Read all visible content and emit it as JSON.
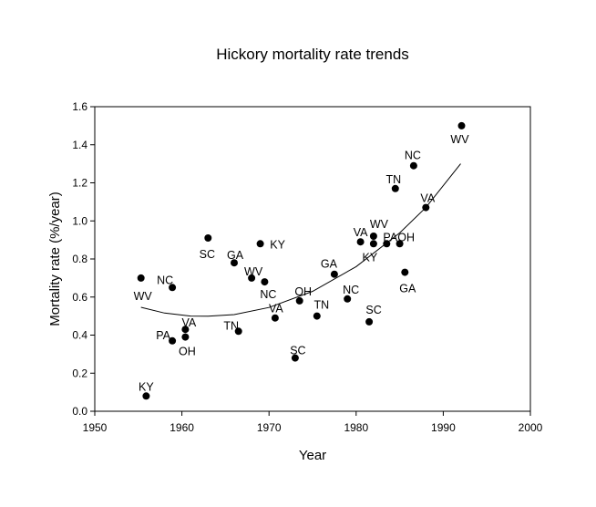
{
  "chart_data": {
    "type": "scatter",
    "title": "Hickory mortality rate trends",
    "xlabel": "Year",
    "ylabel": "Mortality rate (%/year)",
    "xlim": [
      1950,
      2000
    ],
    "ylim": [
      0.0,
      1.6
    ],
    "x_ticks": [
      "1950",
      "1960",
      "1970",
      "1980",
      "1990",
      "2000"
    ],
    "y_ticks": [
      "0.0",
      "0.2",
      "0.4",
      "0.6",
      "0.8",
      "1.0",
      "1.2",
      "1.4",
      "1.6"
    ],
    "grid": false,
    "legend": "none",
    "marker_color": "#000000",
    "points": [
      {
        "x": 1955.3,
        "y": 0.7,
        "label": "WV"
      },
      {
        "x": 1955.9,
        "y": 0.08,
        "label": "KY"
      },
      {
        "x": 1958.9,
        "y": 0.65,
        "label": "NC"
      },
      {
        "x": 1958.9,
        "y": 0.37,
        "label": "PA"
      },
      {
        "x": 1960.4,
        "y": 0.43,
        "label": "VA"
      },
      {
        "x": 1960.4,
        "y": 0.39,
        "label": "OH"
      },
      {
        "x": 1963.0,
        "y": 0.91,
        "label": "SC"
      },
      {
        "x": 1966.0,
        "y": 0.78,
        "label": "GA"
      },
      {
        "x": 1966.5,
        "y": 0.42,
        "label": "TN"
      },
      {
        "x": 1968.0,
        "y": 0.7,
        "label": "WV"
      },
      {
        "x": 1969.0,
        "y": 0.88,
        "label": "KY"
      },
      {
        "x": 1969.5,
        "y": 0.68,
        "label": "NC"
      },
      {
        "x": 1970.7,
        "y": 0.49,
        "label": "VA"
      },
      {
        "x": 1973.0,
        "y": 0.28,
        "label": "SC"
      },
      {
        "x": 1973.5,
        "y": 0.58,
        "label": "OH"
      },
      {
        "x": 1975.5,
        "y": 0.5,
        "label": "TN"
      },
      {
        "x": 1977.5,
        "y": 0.72,
        "label": "GA"
      },
      {
        "x": 1979.0,
        "y": 0.59,
        "label": "NC"
      },
      {
        "x": 1980.5,
        "y": 0.89,
        "label": "VA"
      },
      {
        "x": 1981.5,
        "y": 0.47,
        "label": "SC"
      },
      {
        "x": 1982.0,
        "y": 0.92,
        "label": "WV"
      },
      {
        "x": 1982.0,
        "y": 0.88,
        "label": "KY"
      },
      {
        "x": 1983.5,
        "y": 0.88,
        "label": "PA"
      },
      {
        "x": 1984.5,
        "y": 1.17,
        "label": "TN"
      },
      {
        "x": 1985.0,
        "y": 0.88,
        "label": "OH"
      },
      {
        "x": 1985.6,
        "y": 0.73,
        "label": "GA"
      },
      {
        "x": 1986.6,
        "y": 1.29,
        "label": "NC"
      },
      {
        "x": 1988.0,
        "y": 1.07,
        "label": "VA"
      },
      {
        "x": 1992.1,
        "y": 1.5,
        "label": "WV"
      }
    ],
    "trend_line": {
      "type": "quadratic",
      "x": [
        1955.3,
        1958.0,
        1961.0,
        1963.0,
        1966.0,
        1970.0,
        1975.0,
        1980.0,
        1985.0,
        1988.0,
        1992.0
      ],
      "y": [
        0.546,
        0.516,
        0.5,
        0.499,
        0.508,
        0.545,
        0.63,
        0.76,
        0.937,
        1.07,
        1.3
      ]
    }
  }
}
